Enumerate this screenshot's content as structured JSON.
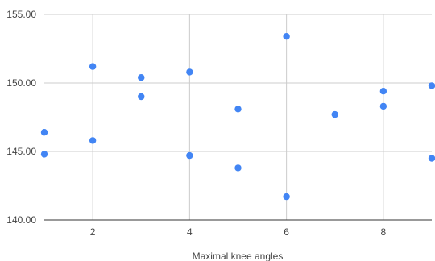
{
  "chart_data": {
    "type": "scatter",
    "title": "",
    "xlabel": "Maximal knee angles",
    "ylabel": "",
    "xlim": [
      1,
      9
    ],
    "ylim": [
      140,
      155
    ],
    "x_ticks": [
      2,
      4,
      6,
      8
    ],
    "y_ticks": [
      140,
      145,
      150,
      155
    ],
    "y_tick_labels": [
      "140.00",
      "145.00",
      "150.00",
      "155.00"
    ],
    "grid": true,
    "legend": "none",
    "colors": {
      "point": "#4285f4"
    },
    "series": [
      {
        "x": [
          1,
          1,
          2,
          2,
          3,
          3,
          4,
          4,
          5,
          5,
          6,
          6,
          7,
          8,
          8,
          9,
          9
        ],
        "y": [
          146.4,
          144.8,
          151.2,
          145.8,
          150.4,
          149.0,
          150.8,
          144.7,
          148.1,
          143.8,
          153.4,
          141.7,
          147.7,
          149.4,
          148.3,
          149.8,
          144.5
        ]
      }
    ]
  }
}
